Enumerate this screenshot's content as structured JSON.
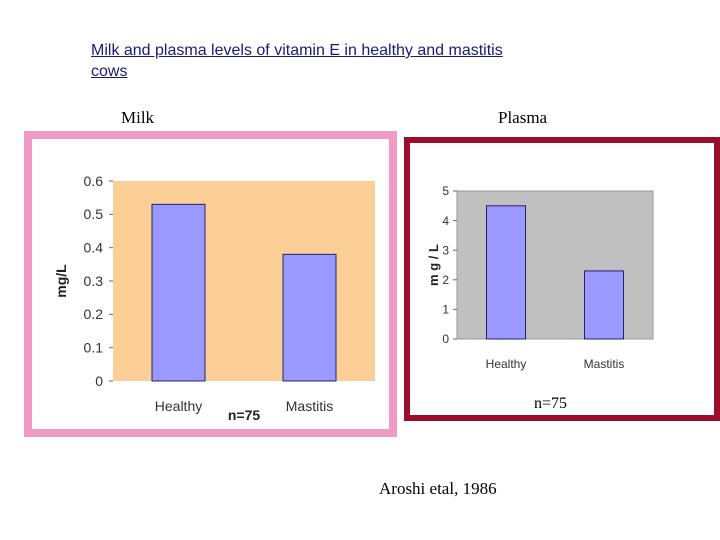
{
  "title": "Milk and plasma levels of vitamin E in healthy and mastitis cows",
  "milk_label": "Milk",
  "plasma_label": "Plasma",
  "citation": "Aroshi etal, 1986",
  "colors": {
    "milk_frame": "#f29ac6",
    "milk_plot_bg": "#fccf97",
    "plasma_frame": "#9b0d2c",
    "plasma_plot_bg": "#c0c0c0",
    "bar_fill": "#9999ff",
    "bar_stroke": "#222266"
  },
  "chart_data": [
    {
      "type": "bar",
      "categories": [
        "Healthy",
        "Mastitis"
      ],
      "values": [
        0.53,
        0.38
      ],
      "ylabel": "mg/L",
      "ylim": [
        0,
        0.6
      ],
      "yticks": [
        "0",
        "0.1",
        "0.2",
        "0.3",
        "0.4",
        "0.5",
        "0.6"
      ],
      "annotation": "n=75",
      "grid": false
    },
    {
      "type": "bar",
      "categories": [
        "Healthy",
        "Mastitis"
      ],
      "values": [
        4.5,
        2.3
      ],
      "ylabel": "m g / L",
      "ylim": [
        0,
        5
      ],
      "yticks": [
        "0",
        "1",
        "2",
        "3",
        "4",
        "5"
      ],
      "annotation": "n=75",
      "grid": false
    }
  ]
}
